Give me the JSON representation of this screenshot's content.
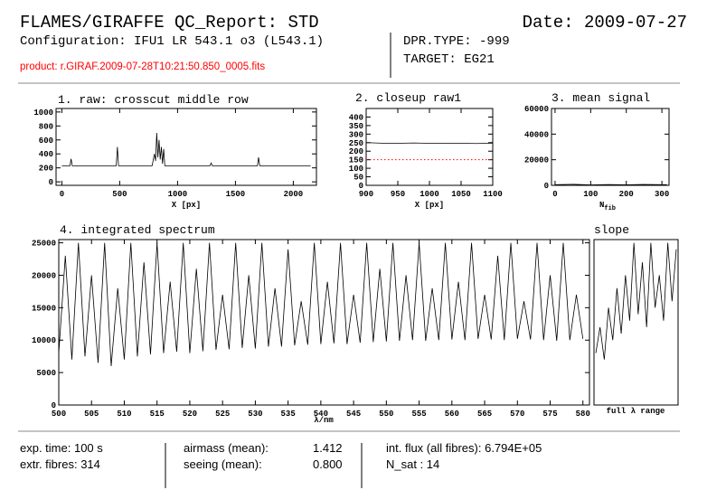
{
  "header": {
    "title": "FLAMES/GIRAFFE QC_Report: STD",
    "date": "Date: 2009-07-27",
    "configuration": "Configuration: IFU1 LR 543.1 o3 (L543.1)",
    "dpr_type": "DPR.TYPE: -999",
    "target": "TARGET: EG21",
    "product": "product: r.GIRAF.2009-07-28T10:21:50.850_0005.fits"
  },
  "chart_data": [
    {
      "type": "line",
      "title": "1. raw: crosscut middle row",
      "xlabel": "X [px]",
      "xlim": [
        -50,
        2200
      ],
      "ylim": [
        -50,
        1050
      ],
      "xticks": [
        0,
        500,
        1000,
        1500,
        2000
      ],
      "yticks": [
        0,
        200,
        400,
        600,
        800,
        1000
      ],
      "series": [
        {
          "color": "#000000",
          "x": [
            0,
            70,
            80,
            90,
            470,
            480,
            490,
            780,
            800,
            810,
            820,
            830,
            840,
            850,
            860,
            870,
            880,
            890,
            1280,
            1290,
            1300,
            1690,
            1700,
            1710,
            2150
          ],
          "values": [
            230,
            230,
            330,
            230,
            230,
            500,
            230,
            230,
            400,
            300,
            700,
            350,
            600,
            320,
            500,
            260,
            470,
            230,
            230,
            270,
            230,
            230,
            350,
            230,
            230
          ]
        }
      ]
    },
    {
      "type": "line",
      "title": "2. closeup raw1",
      "xlabel": "X [px]",
      "xlim": [
        900,
        1100
      ],
      "ylim": [
        0,
        450
      ],
      "xticks": [
        900,
        950,
        1000,
        1050,
        1100
      ],
      "yticks": [
        0,
        50,
        100,
        150,
        200,
        250,
        300,
        350,
        400
      ],
      "series": [
        {
          "color": "#000000",
          "x": [
            900,
            925,
            950,
            975,
            1000,
            1025,
            1050,
            1075,
            1100
          ],
          "values": [
            250,
            247,
            246,
            248,
            246,
            247,
            246,
            245,
            247
          ]
        },
        {
          "color": "#ff0000",
          "style": "dotted",
          "x": [
            900,
            1100
          ],
          "values": [
            150,
            150
          ]
        }
      ]
    },
    {
      "type": "line",
      "title": "3. mean signal",
      "xlabel": "N",
      "xlabel_sub": "fib",
      "xlim": [
        -10,
        320
      ],
      "ylim": [
        0,
        60000
      ],
      "xticks": [
        0,
        100,
        200,
        300
      ],
      "yticks": [
        0,
        20000,
        40000,
        60000
      ],
      "series": [
        {
          "color": "#000000",
          "x": [
            0,
            50,
            100,
            150,
            200,
            250,
            300,
            314
          ],
          "values": [
            500,
            800,
            300,
            600,
            400,
            700,
            500,
            500
          ]
        }
      ]
    },
    {
      "type": "line",
      "title": "4. integrated spectrum",
      "xlabel": "λ/nm",
      "xlim": [
        500,
        581
      ],
      "ylim": [
        0,
        25500
      ],
      "xticks": [
        500,
        505,
        510,
        515,
        520,
        525,
        530,
        535,
        540,
        545,
        550,
        555,
        560,
        565,
        570,
        575,
        580
      ],
      "yticks": [
        0,
        5000,
        10000,
        15000,
        20000,
        25000
      ],
      "series": [
        {
          "color": "#000000",
          "x": [
            500,
            501,
            502,
            503,
            504,
            505,
            506,
            507,
            508,
            509,
            510,
            511,
            512,
            513,
            514,
            515,
            516,
            517,
            518,
            519,
            520,
            521,
            522,
            523,
            524,
            525,
            526,
            527,
            528,
            529,
            530,
            531,
            532,
            533,
            534,
            535,
            536,
            537,
            538,
            539,
            540,
            541,
            542,
            543,
            544,
            545,
            546,
            547,
            548,
            549,
            550,
            551,
            552,
            553,
            554,
            555,
            556,
            557,
            558,
            559,
            560,
            561,
            562,
            563,
            564,
            565,
            566,
            567,
            568,
            569,
            570,
            571,
            572,
            573,
            574,
            575,
            576,
            577,
            578,
            579,
            580
          ],
          "values": [
            8000,
            23000,
            7000,
            25000,
            7500,
            20000,
            6500,
            25000,
            6000,
            18000,
            7000,
            25000,
            7500,
            22000,
            7800,
            25000,
            8000,
            19000,
            8200,
            25000,
            8000,
            21000,
            8300,
            25000,
            8500,
            17000,
            8600,
            25000,
            8800,
            20000,
            8700,
            25000,
            9000,
            18000,
            9000,
            24000,
            9200,
            16000,
            9300,
            25000,
            9400,
            19000,
            9500,
            25000,
            9400,
            17000,
            9600,
            25000,
            9700,
            21000,
            9800,
            25000,
            9900,
            20000,
            10000,
            25000,
            9900,
            18000,
            10000,
            25000,
            10100,
            19000,
            10000,
            25000,
            10200,
            17000,
            10100,
            23000,
            10000,
            25000,
            10200,
            16000,
            10100,
            25000,
            10000,
            20000,
            9900,
            25000,
            10000,
            17000,
            10200
          ]
        }
      ]
    },
    {
      "type": "line",
      "title": "slope",
      "xlabel": "full λ range",
      "ylim": [
        0,
        25500
      ],
      "series": [
        {
          "color": "#000000",
          "values": [
            8000,
            12000,
            7000,
            15000,
            10000,
            18000,
            11000,
            20000,
            13000,
            25000,
            14000,
            22000,
            12000,
            25000,
            15000,
            20000,
            13000,
            25000,
            16000,
            24000
          ]
        }
      ]
    }
  ],
  "footer": {
    "exp_time": "exp. time: 100 s",
    "extr_fibres": "extr. fibres: 314",
    "airmass_label": "airmass (mean):",
    "airmass": "1.412",
    "seeing_label": "seeing (mean):",
    "seeing": "0.800",
    "int_flux": "int. flux (all fibres): 6.794E+05",
    "n_sat": "N_sat : 14"
  }
}
